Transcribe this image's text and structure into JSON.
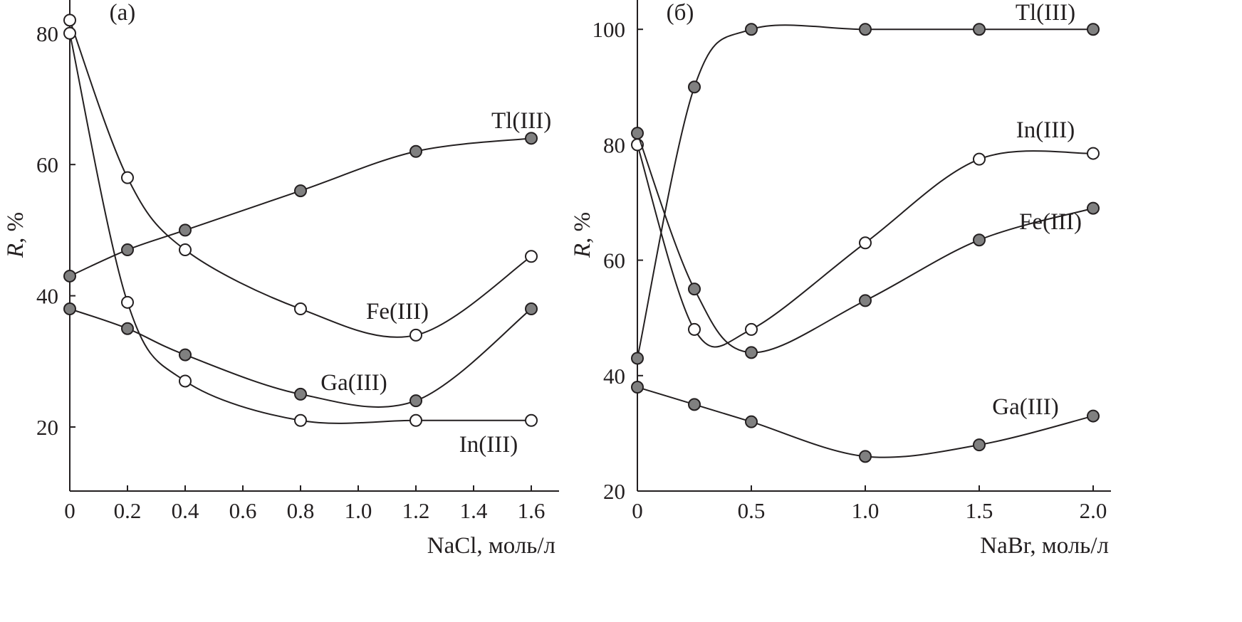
{
  "chart_data": [
    {
      "type": "line",
      "panel_label": "(a)",
      "xlabel": "NaCl, моль/л",
      "ylabel_italic": "R",
      "ylabel_rest": ", %",
      "xlim": [
        0,
        1.7
      ],
      "ylim": [
        10,
        85
      ],
      "xticks": [
        0,
        0.2,
        0.4,
        0.6,
        0.8,
        1.0,
        1.2,
        1.4,
        1.6
      ],
      "xtick_labels": [
        "0",
        "0.2",
        "0.4",
        "0.6",
        "0.8",
        "1.0",
        "1.2",
        "1.4",
        "1.6"
      ],
      "yticks": [
        20,
        40,
        60,
        80
      ],
      "ytick_labels": [
        "20",
        "40",
        "60",
        "80"
      ],
      "grid": false,
      "series": [
        {
          "name": "Tl(III)",
          "marker": "filled",
          "x": [
            0,
            0.2,
            0.4,
            0.8,
            1.2,
            1.6
          ],
          "y": [
            43,
            47,
            50,
            56,
            62,
            64
          ]
        },
        {
          "name": "Fe(III)",
          "marker": "open",
          "x": [
            0,
            0.2,
            0.4,
            0.8,
            1.2,
            1.6
          ],
          "y": [
            82,
            58,
            47,
            38,
            34,
            46
          ]
        },
        {
          "name": "Ga(III)",
          "marker": "filled",
          "x": [
            0,
            0.2,
            0.4,
            0.8,
            1.2,
            1.6
          ],
          "y": [
            38,
            35,
            31,
            25,
            24,
            38
          ]
        },
        {
          "name": "In(III)",
          "marker": "open",
          "x": [
            0,
            0.2,
            0.4,
            0.8,
            1.2,
            1.6
          ],
          "y": [
            80,
            39,
            27,
            21,
            21,
            21
          ]
        }
      ]
    },
    {
      "type": "line",
      "panel_label": "(б)",
      "xlabel": "NaBr, моль/л",
      "ylabel_italic": "R",
      "ylabel_rest": ", %",
      "xlim": [
        0,
        2.08
      ],
      "ylim": [
        20,
        105
      ],
      "xticks": [
        0,
        0.5,
        1.0,
        1.5,
        2.0
      ],
      "xtick_labels": [
        "0",
        "0.5",
        "1.0",
        "1.5",
        "2.0"
      ],
      "yticks": [
        20,
        40,
        60,
        80,
        100
      ],
      "ytick_labels": [
        "20",
        "40",
        "60",
        "80",
        "100"
      ],
      "grid": false,
      "series": [
        {
          "name": "Tl(III)",
          "marker": "filled",
          "x": [
            0,
            0.25,
            0.5,
            1.0,
            1.5,
            2.0
          ],
          "y": [
            43,
            90,
            100,
            100,
            100,
            100
          ]
        },
        {
          "name": "In(III)",
          "marker": "open",
          "x": [
            0,
            0.25,
            0.5,
            1.0,
            1.5,
            2.0
          ],
          "y": [
            80,
            48,
            48,
            63,
            77.5,
            78.5
          ]
        },
        {
          "name": "Fe(III)",
          "marker": "filled",
          "x": [
            0,
            0.25,
            0.5,
            1.0,
            1.5,
            2.0
          ],
          "y": [
            82,
            55,
            44,
            53,
            63.5,
            69
          ]
        },
        {
          "name": "Ga(III)",
          "marker": "filled",
          "x": [
            0,
            0.25,
            0.5,
            1.0,
            1.5,
            2.0
          ],
          "y": [
            38,
            35,
            32,
            26,
            28,
            33
          ]
        }
      ]
    }
  ]
}
